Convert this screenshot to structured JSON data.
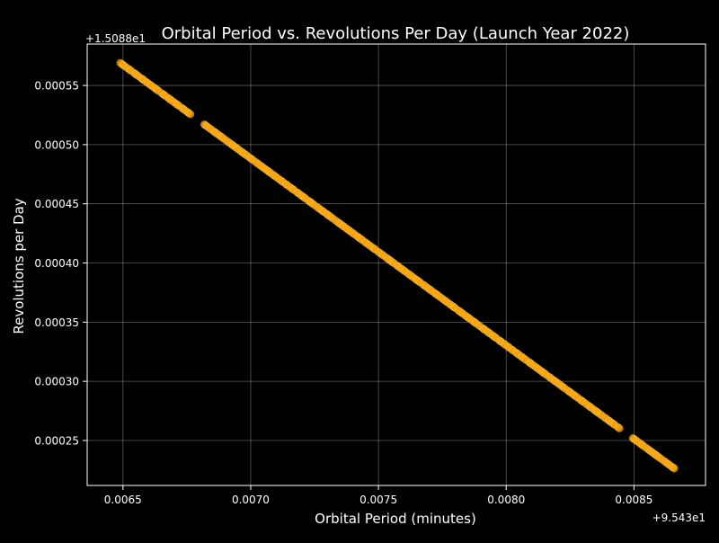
{
  "chart_data": {
    "type": "scatter",
    "title": "Orbital Period vs. Revolutions Per Day (Launch Year 2022)",
    "xlabel": "Orbital Period (minutes)",
    "ylabel": "Revolutions per Day",
    "x_offset_label": "+9.543e1",
    "y_offset_label": "+1.5088e1",
    "x_offset": 95.43,
    "y_offset": 15.088,
    "xlim": [
      0.00636,
      0.00878
    ],
    "ylim": [
      0.000212,
      0.000585
    ],
    "x_ticks": [
      0.0065,
      0.007,
      0.0075,
      0.008,
      0.0085
    ],
    "x_tick_labels": [
      "0.0065",
      "0.0070",
      "0.0075",
      "0.0080",
      "0.0085"
    ],
    "y_ticks": [
      0.00025,
      0.0003,
      0.00035,
      0.0004,
      0.00045,
      0.0005,
      0.00055
    ],
    "y_tick_labels": [
      "0.00025",
      "0.00030",
      "0.00035",
      "0.00040",
      "0.00045",
      "0.00050",
      "0.00055"
    ],
    "grid": true,
    "marker_color": "#FFA500",
    "background_color": "#000000",
    "x_range": [
      0.00649,
      0.00866
    ],
    "y_range": [
      0.000569,
      0.000226
    ],
    "point_count": 300,
    "gaps": [
      [
        0.00677,
        0.00681
      ],
      [
        0.00845,
        0.00849
      ]
    ]
  }
}
